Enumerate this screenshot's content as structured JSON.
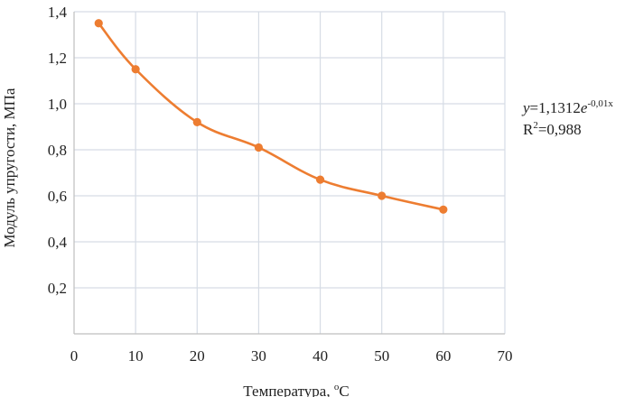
{
  "chart_data": {
    "type": "line",
    "title": "",
    "xlabel": "Температура, ",
    "xlabel_sup": "o",
    "xlabel_unit": "C",
    "ylabel": "Модуль упругости, МПа",
    "x": [
      4,
      10,
      20,
      30,
      40,
      50,
      60
    ],
    "series": [
      {
        "values": [
          1.35,
          1.15,
          0.92,
          0.81,
          0.67,
          0.6,
          0.54
        ]
      }
    ],
    "xlim": [
      0,
      70
    ],
    "ylim": [
      0.0,
      1.4
    ],
    "xticks": [
      "0",
      "10",
      "20",
      "30",
      "40",
      "50",
      "60",
      "70"
    ],
    "yticks": [
      "0,2",
      "0,4",
      "0,6",
      "0,8",
      "1,0",
      "1,2",
      "1,4"
    ],
    "grid": true,
    "smooth": true,
    "annotation": {
      "y_var": "y",
      "eq_mid": "=1,1312",
      "e_var": "e",
      "exponent": "-0,01x",
      "r2_base": "R",
      "r2_sup": "2",
      "r2_rest": "=0,988"
    },
    "colors": {
      "series": "#ED7D31",
      "grid": "#D6DCE5",
      "axis": "#BFBFBF",
      "text": "#222222"
    }
  }
}
